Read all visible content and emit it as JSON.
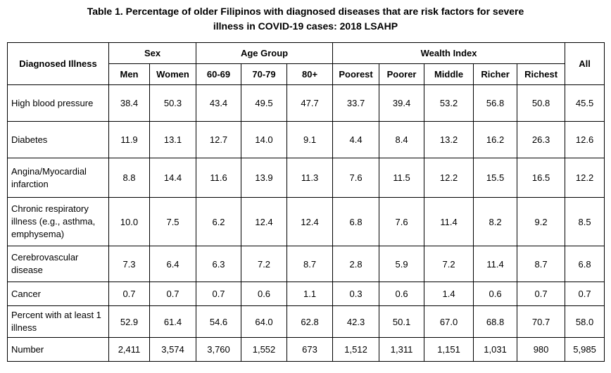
{
  "title": {
    "line1": "Table 1. Percentage of older Filipinos with diagnosed diseases that are risk factors for severe",
    "line2": "illness in COVID-19 cases: 2018 LSAHP"
  },
  "header": {
    "diagnosed_illness": "Diagnosed Illness",
    "groups": [
      "Sex",
      "Age Group",
      "Wealth Index"
    ],
    "all": "All",
    "subcolumns": [
      "Men",
      "Women",
      "60-69",
      "70-79",
      "80+",
      "Poorest",
      "Poorer",
      "Middle",
      "Richer",
      "Richest"
    ]
  },
  "rows": [
    {
      "label": "High blood pressure",
      "values": [
        "38.4",
        "50.3",
        "43.4",
        "49.5",
        "47.7",
        "33.7",
        "39.4",
        "53.2",
        "56.8",
        "50.8",
        "45.5"
      ]
    },
    {
      "label": "Diabetes",
      "values": [
        "11.9",
        "13.1",
        "12.7",
        "14.0",
        "9.1",
        "4.4",
        "8.4",
        "13.2",
        "16.2",
        "26.3",
        "12.6"
      ]
    },
    {
      "label": "Angina/Myocardial infarction",
      "values": [
        "8.8",
        "14.4",
        "11.6",
        "13.9",
        "11.3",
        "7.6",
        "11.5",
        "12.2",
        "15.5",
        "16.5",
        "12.2"
      ]
    },
    {
      "label": "Chronic respiratory illness (e.g., asthma, emphysema)",
      "values": [
        "10.0",
        "7.5",
        "6.2",
        "12.4",
        "12.4",
        "6.8",
        "7.6",
        "11.4",
        "8.2",
        "9.2",
        "8.5"
      ]
    },
    {
      "label": "Cerebrovascular disease",
      "values": [
        "7.3",
        "6.4",
        "6.3",
        "7.2",
        "8.7",
        "2.8",
        "5.9",
        "7.2",
        "11.4",
        "8.7",
        "6.8"
      ]
    },
    {
      "label": "Cancer",
      "values": [
        "0.7",
        "0.7",
        "0.7",
        "0.6",
        "1.1",
        "0.3",
        "0.6",
        "1.4",
        "0.6",
        "0.7",
        "0.7"
      ]
    },
    {
      "label": "Percent with at least 1 illness",
      "values": [
        "52.9",
        "61.4",
        "54.6",
        "64.0",
        "62.8",
        "42.3",
        "50.1",
        "67.0",
        "68.8",
        "70.7",
        "58.0"
      ]
    },
    {
      "label": "Number",
      "values": [
        "2,411",
        "3,574",
        "3,760",
        "1,552",
        "673",
        "1,512",
        "1,311",
        "1,151",
        "1,031",
        "980",
        "5,985"
      ]
    }
  ]
}
